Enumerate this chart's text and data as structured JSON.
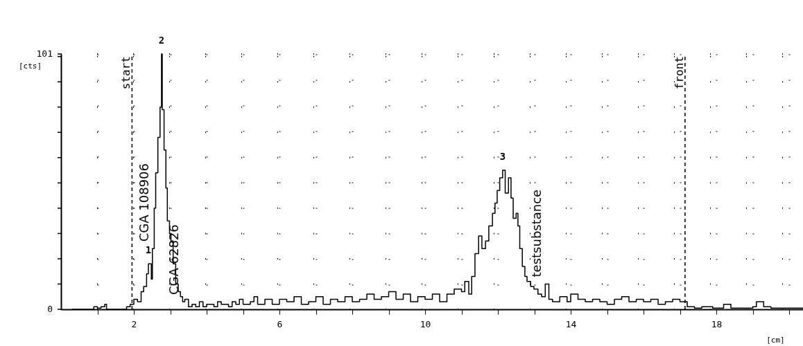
{
  "chart_data": {
    "type": "step",
    "xlabel": "[cm]",
    "ylabel": "[cts]",
    "xlim": [
      0,
      20.38
    ],
    "xticks": [
      {
        "value": 1,
        "label": null
      },
      2,
      {
        "value": 3,
        "label": null
      },
      {
        "value": 4,
        "label": null
      },
      {
        "value": 5,
        "label": null
      },
      6,
      {
        "value": 7,
        "label": null
      },
      {
        "value": 8,
        "label": null
      },
      {
        "value": 9,
        "label": null
      },
      10,
      {
        "value": 11,
        "label": null
      },
      {
        "value": 12,
        "label": null
      },
      {
        "value": 13,
        "label": null
      },
      14,
      {
        "value": 15,
        "label": null
      },
      {
        "value": 16,
        "label": null
      },
      {
        "value": 17,
        "label": null
      },
      18,
      {
        "value": 19,
        "label": null
      },
      {
        "value": 20,
        "label": null
      }
    ],
    "ylim": [
      0,
      101
    ],
    "yticks": [
      0,
      {
        "value": 10,
        "label": null
      },
      {
        "value": 20,
        "label": null
      },
      {
        "value": 30,
        "label": null
      },
      {
        "value": 40,
        "label": null
      },
      {
        "value": 50,
        "label": null
      },
      {
        "value": 60,
        "label": null
      },
      {
        "value": 70,
        "label": null
      },
      {
        "value": 80,
        "label": null
      },
      {
        "value": 90,
        "label": null
      },
      {
        "value": 100,
        "label": null
      },
      101
    ],
    "grid": true,
    "series": [
      {
        "color": "#000000",
        "x": [
          0.3,
          0.8,
          0.9,
          1.0,
          1.1,
          1.2,
          1.25,
          1.5,
          1.8,
          1.9,
          2.0,
          2.1,
          2.2,
          2.27,
          2.35,
          2.4,
          2.48,
          2.51,
          2.56,
          2.6,
          2.66,
          2.72,
          2.76,
          2.78,
          2.83,
          2.88,
          2.92,
          2.98,
          3.02,
          3.08,
          3.15,
          3.22,
          3.28,
          3.34,
          3.4,
          3.5,
          3.6,
          3.7,
          3.8,
          3.9,
          4.0,
          4.2,
          4.3,
          4.4,
          4.6,
          4.7,
          4.8,
          4.9,
          5.0,
          5.2,
          5.3,
          5.4,
          5.6,
          5.8,
          6.0,
          6.2,
          6.4,
          6.6,
          6.8,
          7.0,
          7.2,
          7.4,
          7.6,
          7.8,
          8.0,
          8.2,
          8.4,
          8.6,
          8.8,
          9.0,
          9.2,
          9.4,
          9.6,
          9.8,
          10.0,
          10.2,
          10.4,
          10.6,
          10.8,
          11.0,
          11.09,
          11.2,
          11.28,
          11.37,
          11.47,
          11.56,
          11.66,
          11.75,
          11.85,
          11.92,
          11.98,
          12.05,
          12.13,
          12.2,
          12.29,
          12.36,
          12.42,
          12.5,
          12.55,
          12.6,
          12.67,
          12.74,
          12.8,
          12.9,
          12.99,
          13.1,
          13.2,
          13.3,
          13.4,
          13.5,
          13.7,
          13.9,
          14.0,
          14.2,
          14.4,
          14.6,
          14.8,
          15.0,
          15.2,
          15.4,
          15.6,
          15.8,
          16.0,
          16.2,
          16.4,
          16.6,
          16.8,
          17.0,
          17.2,
          17.4,
          17.6,
          17.9,
          18.2,
          18.4,
          18.8,
          19.0,
          19.1,
          19.3,
          19.5,
          20.38
        ],
        "values": [
          0,
          0,
          1,
          0.5,
          1,
          2,
          0,
          0,
          1,
          2,
          4,
          3,
          7,
          9,
          14,
          18,
          12,
          24,
          40,
          54,
          68,
          80,
          101,
          79,
          63,
          48,
          35,
          30,
          27,
          18,
          10,
          7,
          5,
          3,
          4,
          1,
          2,
          1,
          3,
          1,
          2,
          1,
          3,
          2,
          1,
          3,
          2,
          4,
          2,
          3,
          5,
          2,
          4,
          2,
          4,
          3,
          5,
          2,
          3,
          5,
          2,
          4,
          3,
          5,
          3,
          4,
          6,
          4,
          5,
          7,
          4,
          6,
          3,
          5,
          4,
          6,
          3,
          6,
          8,
          7,
          11,
          6,
          13,
          22,
          29,
          24,
          27,
          33,
          38,
          42,
          47,
          52,
          55,
          46,
          52,
          44,
          36,
          38,
          33,
          24,
          17,
          13,
          11,
          9,
          8,
          6,
          5,
          10,
          4,
          3,
          5,
          3,
          6,
          4,
          3,
          4,
          3,
          2,
          4,
          5,
          3,
          4,
          3,
          4,
          2,
          3,
          4,
          3,
          1,
          0.5,
          1,
          0.5,
          2,
          0.5,
          0.5,
          1,
          3,
          1,
          0.5,
          0.5
        ]
      }
    ],
    "ref_lines": [
      {
        "axis": "x",
        "value": 1.95,
        "label": "start",
        "line_style": "dashed"
      },
      {
        "axis": "x",
        "value": 17.14,
        "label": "front",
        "line_style": "dashed"
      }
    ],
    "annotations": [
      {
        "text": "2",
        "x": 2.76,
        "y": 101
      },
      {
        "text": "1",
        "x": 2.4,
        "y": 18
      },
      {
        "text": "3",
        "x": 12.13,
        "y": 55
      },
      {
        "text": "CGA 108906",
        "x": 2.51,
        "y": 24
      },
      {
        "text": "CGA 62826",
        "x": 3.34,
        "y": 3
      },
      {
        "text": "testsubstance",
        "x": 13.3,
        "y": 10
      }
    ]
  }
}
